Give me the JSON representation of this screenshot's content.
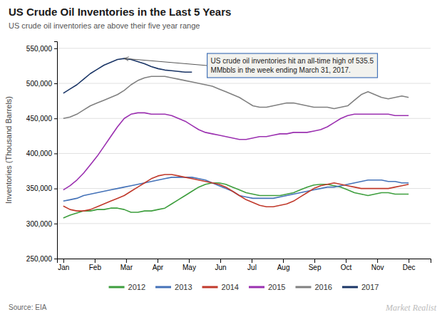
{
  "chart_data": {
    "type": "line",
    "title": "US Crude Oil Inventories in the Last 5 Years",
    "subtitle": "US crude oil inventories are above their five year range",
    "y_label": "Inventories (Thousand Barrels)",
    "source": "Source: EIA",
    "watermark": "Market Realist",
    "x": [
      0,
      0.2156862745,
      0.431372549,
      0.6470588235,
      0.862745098,
      1.0784313725,
      1.2941176471,
      1.5098039216,
      1.7254901961,
      1.9411764706,
      2.1568627451,
      2.3725490196,
      2.5882352941,
      2.8039215686,
      3.0196078431,
      3.2352941176,
      3.4509803922,
      3.6666666667,
      3.8823529412,
      4.0980392157,
      4.3137254902,
      4.5294117647,
      4.7450980392,
      4.9607843137,
      5.1764705882,
      5.3921568627,
      5.6078431373,
      5.8235294118,
      6.0392156863,
      6.2549019608,
      6.4705882353,
      6.6862745098,
      6.9019607843,
      7.1176470588,
      7.3333333333,
      7.5490196078,
      7.7647058824,
      7.9803921569,
      8.1960784314,
      8.4117647059,
      8.6274509804,
      8.8431372549,
      9.0588235294,
      9.2745098039,
      9.4901960784,
      9.7058823529,
      9.9215686275,
      10.137254902,
      10.3529411765,
      10.568627451,
      10.7843137255,
      11
    ],
    "xlim": [
      -0.2,
      11.7
    ],
    "xticks": [
      {
        "value": 0,
        "label": "Jan"
      },
      {
        "value": 1,
        "label": "Feb"
      },
      {
        "value": 2,
        "label": "Mar"
      },
      {
        "value": 3,
        "label": "Apr"
      },
      {
        "value": 4,
        "label": "May"
      },
      {
        "value": 5,
        "label": "Jun"
      },
      {
        "value": 6,
        "label": "Jul"
      },
      {
        "value": 7,
        "label": "Aug"
      },
      {
        "value": 8,
        "label": "Sep"
      },
      {
        "value": 9,
        "label": "Oct"
      },
      {
        "value": 10,
        "label": "Nov"
      },
      {
        "value": 11,
        "label": "Dec"
      }
    ],
    "ylim": [
      250000,
      560000
    ],
    "yticks": [
      {
        "value": 250000,
        "label": "250,000"
      },
      {
        "value": 300000,
        "label": "300,000"
      },
      {
        "value": 350000,
        "label": "350,000"
      },
      {
        "value": 400000,
        "label": "400,000"
      },
      {
        "value": 450000,
        "label": "450,000"
      },
      {
        "value": 500000,
        "label": "500,000"
      },
      {
        "value": 550000,
        "label": "550,000"
      }
    ],
    "grid": true,
    "legend": "bottom",
    "series": [
      {
        "name": "2012",
        "color": "#3d9e3d",
        "values": [
          308000,
          312000,
          315000,
          318000,
          318000,
          320000,
          320000,
          322000,
          322000,
          320000,
          316000,
          316000,
          318000,
          318000,
          320000,
          322000,
          328000,
          334000,
          340000,
          346000,
          352000,
          356000,
          358000,
          358000,
          356000,
          352000,
          348000,
          344000,
          342000,
          340000,
          340000,
          340000,
          340000,
          342000,
          344000,
          348000,
          352000,
          355000,
          356000,
          356000,
          354000,
          352000,
          348000,
          344000,
          342000,
          340000,
          342000,
          344000,
          344000,
          342000,
          342000,
          342000
        ]
      },
      {
        "name": "2013",
        "color": "#4472b8",
        "values": [
          332000,
          334000,
          336000,
          340000,
          342000,
          344000,
          346000,
          348000,
          350000,
          352000,
          354000,
          356000,
          358000,
          360000,
          362000,
          364000,
          366000,
          366000,
          366000,
          366000,
          364000,
          362000,
          358000,
          354000,
          350000,
          346000,
          340000,
          338000,
          336000,
          336000,
          336000,
          336000,
          338000,
          340000,
          342000,
          344000,
          346000,
          348000,
          350000,
          352000,
          352000,
          354000,
          356000,
          358000,
          360000,
          362000,
          362000,
          362000,
          360000,
          360000,
          358000,
          358000
        ]
      },
      {
        "name": "2014",
        "color": "#c0392b",
        "values": [
          325000,
          320000,
          318000,
          318000,
          320000,
          324000,
          328000,
          332000,
          336000,
          340000,
          346000,
          352000,
          358000,
          364000,
          368000,
          370000,
          370000,
          368000,
          366000,
          364000,
          362000,
          360000,
          358000,
          356000,
          352000,
          346000,
          340000,
          334000,
          330000,
          326000,
          324000,
          324000,
          326000,
          328000,
          332000,
          338000,
          344000,
          350000,
          354000,
          356000,
          358000,
          356000,
          354000,
          352000,
          350000,
          350000,
          350000,
          350000,
          350000,
          352000,
          354000,
          356000
        ]
      },
      {
        "name": "2015",
        "color": "#9b30b0",
        "values": [
          348000,
          354000,
          362000,
          372000,
          384000,
          396000,
          410000,
          424000,
          438000,
          450000,
          456000,
          458000,
          458000,
          456000,
          456000,
          456000,
          454000,
          450000,
          446000,
          440000,
          434000,
          430000,
          428000,
          426000,
          424000,
          422000,
          420000,
          420000,
          422000,
          424000,
          424000,
          426000,
          428000,
          428000,
          430000,
          430000,
          430000,
          432000,
          434000,
          438000,
          444000,
          450000,
          454000,
          456000,
          456000,
          456000,
          456000,
          456000,
          456000,
          454000,
          454000,
          454000
        ]
      },
      {
        "name": "2016",
        "color": "#808080",
        "values": [
          450000,
          452000,
          456000,
          462000,
          468000,
          472000,
          476000,
          480000,
          484000,
          490000,
          498000,
          504000,
          508000,
          510000,
          510000,
          510000,
          508000,
          506000,
          504000,
          502000,
          500000,
          498000,
          496000,
          492000,
          488000,
          484000,
          480000,
          474000,
          468000,
          466000,
          466000,
          468000,
          470000,
          472000,
          472000,
          470000,
          468000,
          466000,
          466000,
          466000,
          464000,
          466000,
          468000,
          476000,
          484000,
          488000,
          484000,
          480000,
          478000,
          480000,
          482000,
          480000
        ]
      },
      {
        "name": "2017",
        "color": "#1a3566",
        "values": [
          486000,
          492000,
          498000,
          506000,
          514000,
          520000,
          526000,
          530000,
          534000,
          535500,
          534000,
          531000,
          528000,
          524000,
          521000,
          519000,
          518000,
          517000,
          516000,
          516000,
          null,
          null,
          null,
          null,
          null,
          null,
          null,
          null,
          null,
          null,
          null,
          null,
          null,
          null,
          null,
          null,
          null,
          null,
          null,
          null,
          null,
          null,
          null,
          null,
          null,
          null,
          null,
          null,
          null,
          null,
          null,
          null
        ]
      }
    ],
    "annotations": [
      {
        "text": "US crude oil inventories hit an all-time high of 535.5\nMMbbls in the week ending March 31, 2017.",
        "x": 1.9411764706,
        "y": 535500
      }
    ]
  }
}
